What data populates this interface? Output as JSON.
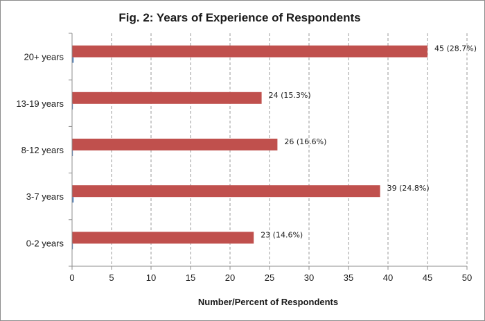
{
  "chart_data": {
    "type": "bar",
    "orientation": "horizontal",
    "title": "Fig.  2: Years of Experience of Respondents",
    "xlabel": "Number/Percent of Respondents",
    "ylabel": "",
    "categories": [
      "20+ years",
      "13-19 years",
      "8-12 years",
      "3-7 years",
      "0-2 years"
    ],
    "series": [
      {
        "values": [
          45,
          24,
          26,
          39,
          23
        ],
        "labels": [
          "45 (28.7%)",
          "24 (15.3%)",
          "26 (16.6%)",
          "39 (24.8%)",
          "23 (14.6%)"
        ],
        "color": "#c0504d"
      },
      {
        "values": [
          0.2,
          0.1,
          0.1,
          0.2,
          0.1
        ],
        "color": "#4f81bd"
      }
    ],
    "xlim": [
      0,
      50
    ],
    "xticks": [
      0,
      5,
      10,
      15,
      20,
      25,
      30,
      35,
      40,
      45,
      50
    ],
    "grid": "vertical dashed",
    "legend": "none"
  }
}
